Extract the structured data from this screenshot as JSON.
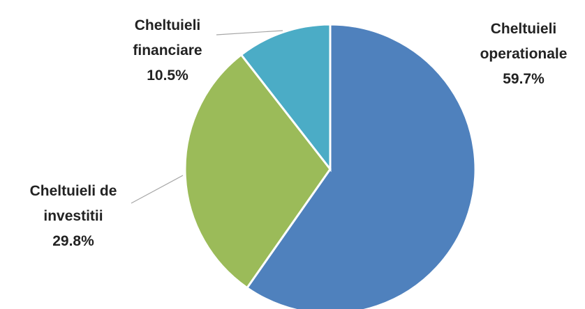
{
  "chart_data": {
    "type": "pie",
    "categories": [
      "Cheltuieli\noperationale",
      "Cheltuieli de\ninvestitii",
      "Cheltuieli\nfinanciare"
    ],
    "values": [
      59.7,
      29.8,
      10.5
    ],
    "value_labels": [
      "59.7%",
      "29.8%",
      "10.5%"
    ],
    "colors": [
      "#4f81bd",
      "#9bbb59",
      "#4bacc6"
    ]
  }
}
